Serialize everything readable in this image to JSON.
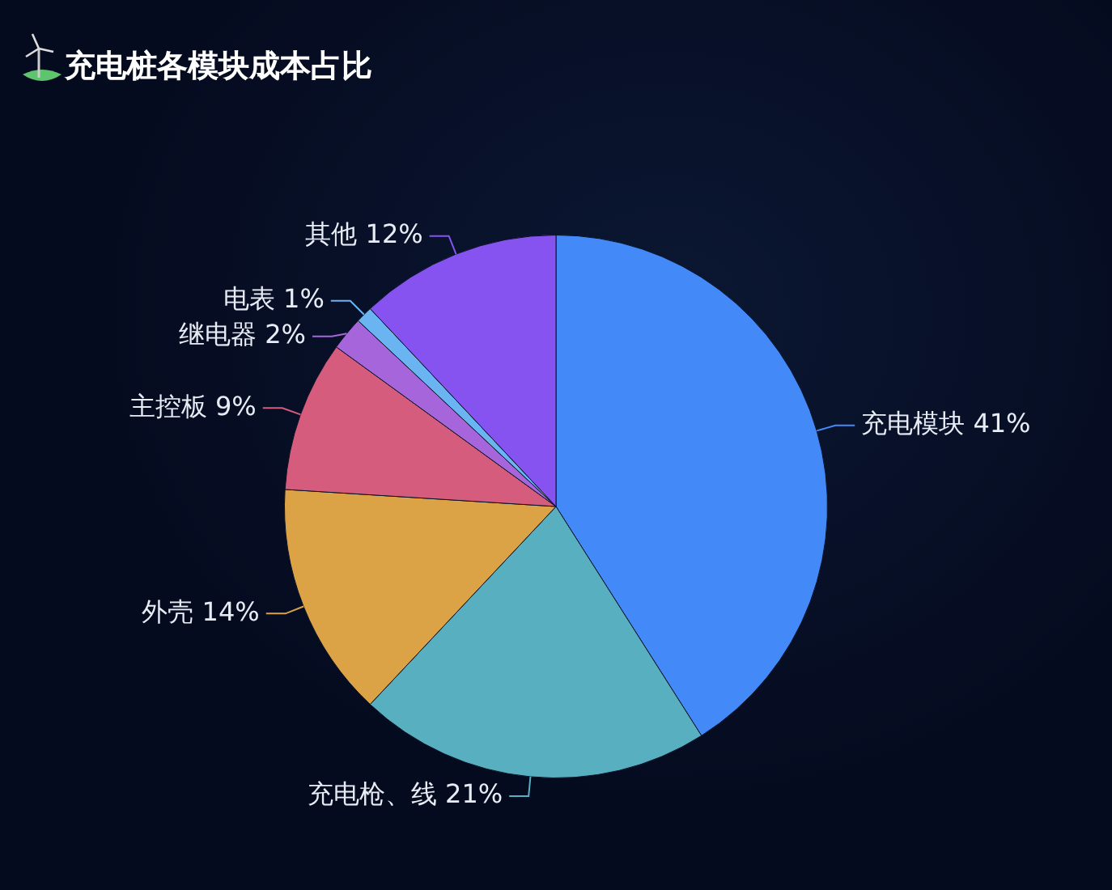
{
  "chart_data": {
    "type": "pie",
    "title": "充电桩各模块成本占比",
    "categories": [
      "充电模块",
      "充电枪、线",
      "外壳",
      "主控板",
      "继电器",
      "电表",
      "其他"
    ],
    "values": [
      41,
      21,
      14,
      9,
      2,
      1,
      12
    ],
    "value_labels": [
      "41%",
      "21%",
      "14%",
      "9%",
      "2%",
      "1%",
      "12%"
    ],
    "colors": [
      "#4389f8",
      "#57afc0",
      "#dba345",
      "#d55c7d",
      "#a665db",
      "#6bb4f2",
      "#8653f1"
    ],
    "legend": false
  }
}
